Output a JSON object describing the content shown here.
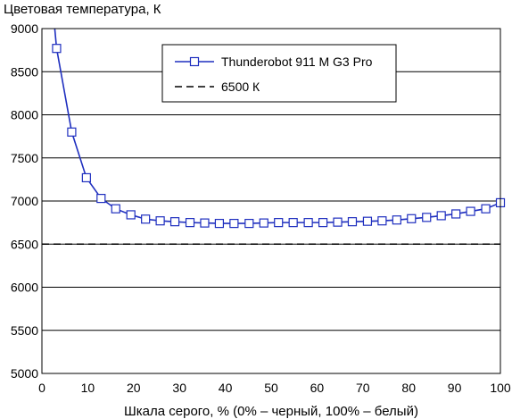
{
  "chart_data": {
    "type": "line",
    "title": "Цветовая температура, К",
    "xlabel": "Шкала серого, % (0% – черный, 100% – белый)",
    "ylabel": "",
    "xlim": [
      0,
      100
    ],
    "ylim": [
      5000,
      9000
    ],
    "x_ticks": [
      0,
      10,
      20,
      30,
      40,
      50,
      60,
      70,
      80,
      90,
      100
    ],
    "y_ticks": [
      5000,
      5500,
      6000,
      6500,
      7000,
      7500,
      8000,
      8500,
      9000
    ],
    "grid": "horizontal",
    "legend_position": "top-center",
    "series": [
      {
        "name": "Thunderobot 911 M G3 Pro",
        "color": "#1f2fbf",
        "marker": "square",
        "x": [
          3.2,
          6.5,
          9.7,
          12.9,
          16.1,
          19.4,
          22.6,
          25.8,
          29.0,
          32.3,
          35.5,
          38.7,
          41.9,
          45.2,
          48.4,
          51.6,
          54.8,
          58.1,
          61.3,
          64.5,
          67.7,
          71.0,
          74.2,
          77.4,
          80.6,
          83.9,
          87.1,
          90.3,
          93.5,
          96.8,
          100.0
        ],
        "y": [
          8770,
          7800,
          7270,
          7030,
          6910,
          6840,
          6790,
          6770,
          6760,
          6750,
          6745,
          6740,
          6740,
          6740,
          6745,
          6750,
          6750,
          6750,
          6750,
          6755,
          6760,
          6765,
          6770,
          6780,
          6795,
          6810,
          6830,
          6850,
          6880,
          6910,
          6980
        ],
        "line_start": {
          "x": 2.8,
          "y": 9000
        }
      },
      {
        "name": "6500 К",
        "color": "#000000",
        "style": "dashed",
        "x": [
          0,
          100
        ],
        "y": [
          6500,
          6500
        ]
      }
    ]
  }
}
